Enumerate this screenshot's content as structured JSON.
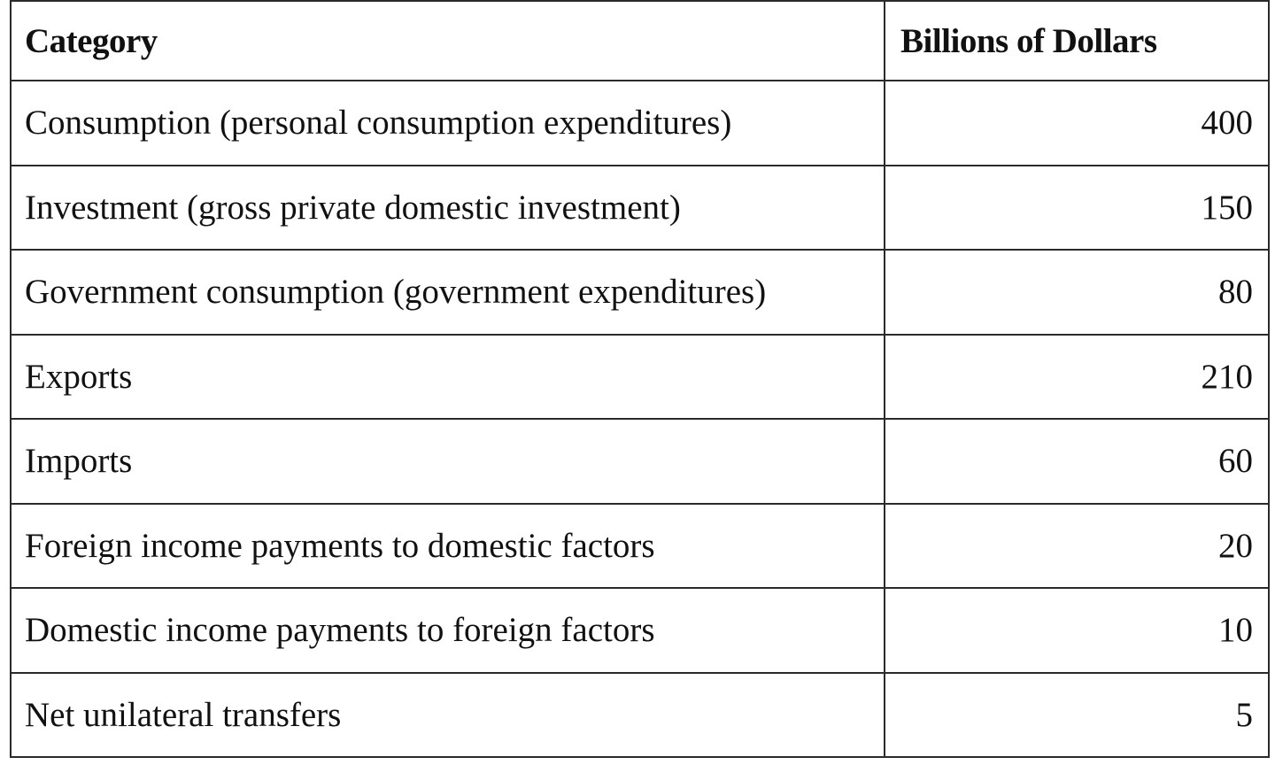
{
  "table": {
    "headers": [
      "Category",
      "Billions of Dollars"
    ],
    "rows": [
      [
        "Consumption (personal consumption expenditures)",
        "400"
      ],
      [
        "Investment (gross private domestic investment)",
        "150"
      ],
      [
        "Government consumption (government expenditures)",
        "80"
      ],
      [
        "Exports",
        "210"
      ],
      [
        "Imports",
        "60"
      ],
      [
        "Foreign income payments to domestic factors",
        "20"
      ],
      [
        "Domestic income payments to foreign factors",
        "10"
      ],
      [
        "Net unilateral transfers",
        "5"
      ]
    ]
  }
}
